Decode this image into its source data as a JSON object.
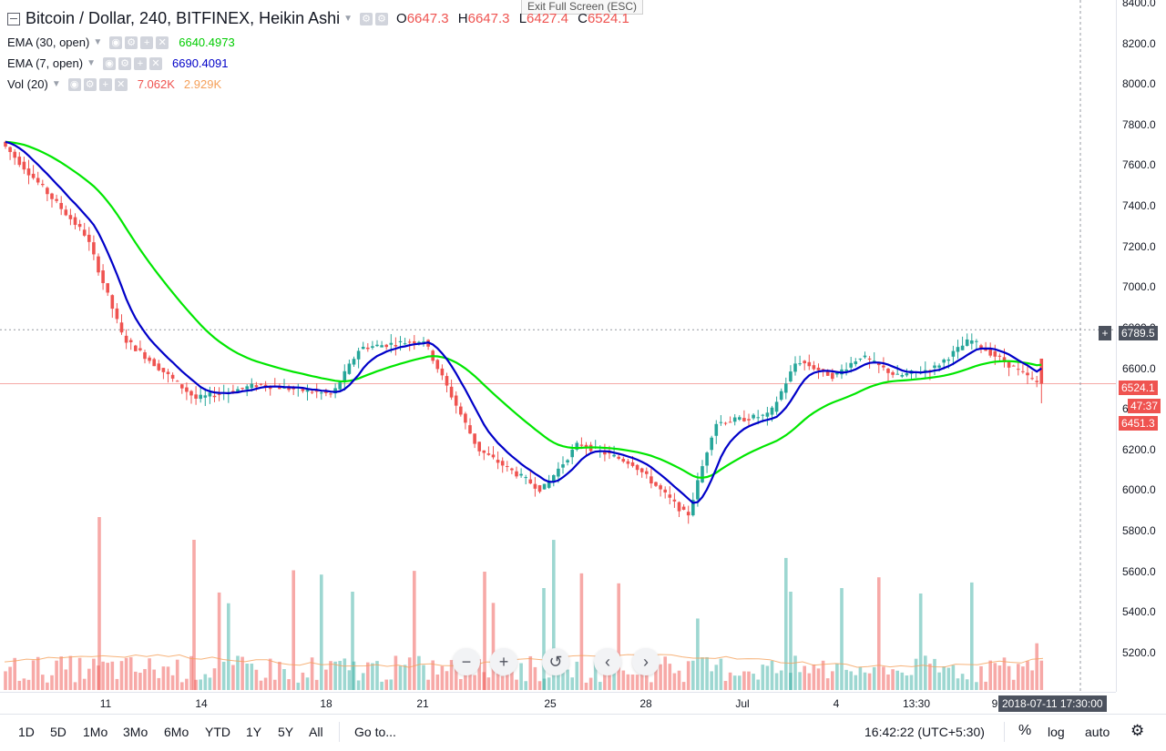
{
  "header": {
    "title": "Bitcoin / Dollar, 240, BITFINEX, Heikin Ashi",
    "o_label": "O",
    "o_value": "6647.3",
    "h_label": "H",
    "h_value": "6647.3",
    "l_label": "L",
    "l_value": "6427.4",
    "c_label": "C",
    "c_value": "6524.1",
    "exit_fullscreen": "Exit Full Screen (ESC)"
  },
  "indicators": [
    {
      "label": "EMA (30, open)",
      "value": "6640.4973",
      "color": "#00e600"
    },
    {
      "label": "EMA (7, open)",
      "value": "6690.4091",
      "color": "#0000c8"
    },
    {
      "label": "Vol (20)",
      "value": "7.062K",
      "value2": "2.929K",
      "color": "#ef5350",
      "color2": "#f5a05a"
    }
  ],
  "price_axis": {
    "ticks": [
      "8400.0",
      "8200.0",
      "8000.0",
      "7800.0",
      "7600.0",
      "7400.0",
      "7200.0",
      "7000.0",
      "6800.0",
      "6600.0",
      "6400.0",
      "6200.0",
      "6000.0",
      "5800.0",
      "5600.0",
      "5400.0",
      "5200.0"
    ],
    "tag_high": "6789.5",
    "tag_last": "6524.1",
    "tag_countdown": "47:37",
    "tag_low": "6451.3"
  },
  "time_axis": {
    "ticks": [
      "11",
      "14",
      "18",
      "21",
      "25",
      "28",
      "Jul",
      "4",
      "13:30",
      "9"
    ],
    "cursor_time": "2018-07-11 17:30:00"
  },
  "bottom_bar": {
    "ranges": [
      "1D",
      "5D",
      "1Mo",
      "3Mo",
      "6Mo",
      "YTD",
      "1Y",
      "5Y",
      "All"
    ],
    "goto": "Go to...",
    "clock": "16:42:22 (UTC+5:30)",
    "percent": "%",
    "log": "log",
    "auto": "auto"
  },
  "nav": {
    "zoom_out": "−",
    "zoom_in": "+",
    "reset": "↺",
    "left": "‹",
    "right": "›"
  },
  "chart_data": {
    "type": "candlestick",
    "symbol": "Bitcoin / Dollar",
    "exchange": "BITFINEX",
    "interval": "240",
    "style": "Heikin Ashi",
    "ylim": [
      5150,
      8400
    ],
    "up_color": "#26a69a",
    "down_color": "#ef5350",
    "x_labels": [
      "11",
      "14",
      "18",
      "21",
      "25",
      "28",
      "Jul",
      "4",
      "13:30",
      "9"
    ],
    "price_anchors": [
      {
        "x": "start",
        "price": 7720
      },
      {
        "x": "11",
        "price": 7250
      },
      {
        "x": "12",
        "price": 6750
      },
      {
        "x": "14",
        "price": 6450
      },
      {
        "x": "16",
        "price": 6520
      },
      {
        "x": "18",
        "price": 6470
      },
      {
        "x": "19",
        "price": 6700
      },
      {
        "x": "21",
        "price": 6740
      },
      {
        "x": "23",
        "price": 6200
      },
      {
        "x": "25",
        "price": 6000
      },
      {
        "x": "26",
        "price": 6230
      },
      {
        "x": "28",
        "price": 6130
      },
      {
        "x": "29",
        "price": 5870
      },
      {
        "x": "30",
        "price": 6330
      },
      {
        "x": "Jul 2",
        "price": 6370
      },
      {
        "x": "3",
        "price": 6640
      },
      {
        "x": "4",
        "price": 6560
      },
      {
        "x": "5",
        "price": 6660
      },
      {
        "x": "6",
        "price": 6560
      },
      {
        "x": "8",
        "price": 6600
      },
      {
        "x": "9",
        "price": 6740
      },
      {
        "x": "end",
        "price": 6524.1
      }
    ],
    "ema_fast": {
      "name": "EMA (7, open)",
      "last": 6690.4091,
      "color": "#0000c8"
    },
    "ema_slow": {
      "name": "EMA (30, open)",
      "last": 6640.4973,
      "color": "#00e600"
    },
    "volume": {
      "last": 7062,
      "ma20": 2929
    },
    "last_price": 6524.1,
    "high_marker": 6789.5,
    "low_marker": 6451.3
  }
}
